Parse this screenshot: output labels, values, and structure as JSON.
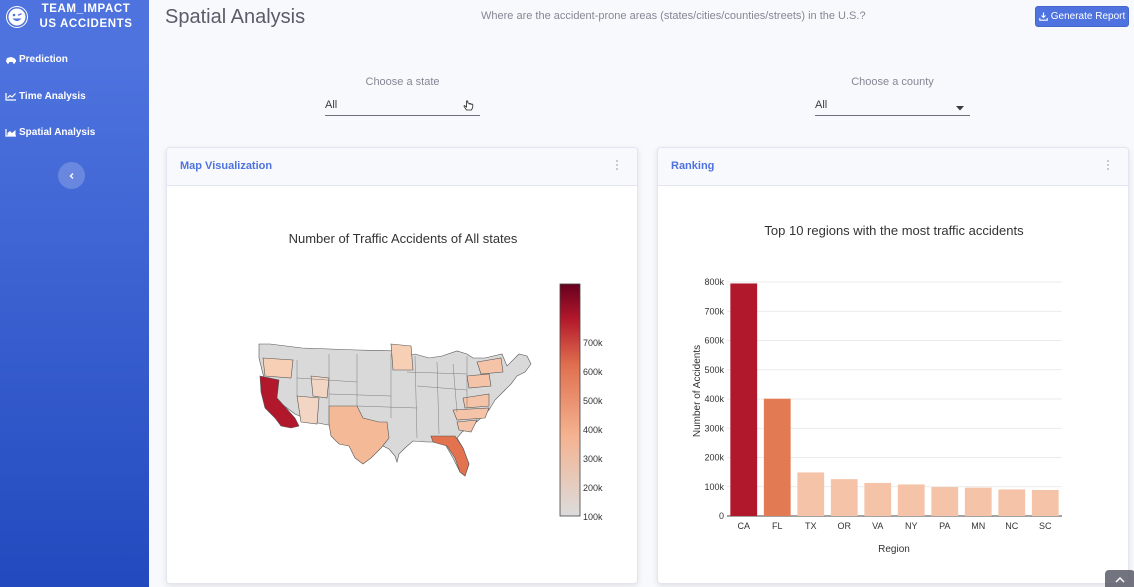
{
  "brand": {
    "line1": "TEAM_IMPACT",
    "line2": "US ACCIDENTS"
  },
  "sidebar": {
    "items": [
      {
        "label": "Prediction",
        "icon": "car-crash-icon"
      },
      {
        "label": "Time Analysis",
        "icon": "line-chart-icon"
      },
      {
        "label": "Spatial Analysis",
        "icon": "area-chart-icon"
      }
    ],
    "toggle_icon": "chevron-left-icon"
  },
  "header": {
    "title": "Spatial Analysis",
    "question": "Where are the accident-prone areas (states/cities/counties/streets) in the U.S.?",
    "report_button": "Generate Report"
  },
  "filters": {
    "state": {
      "label": "Choose a state",
      "value": "All"
    },
    "county": {
      "label": "Choose a county",
      "value": "All"
    }
  },
  "map_card": {
    "title": "Map Visualization",
    "chart_title": "Number of Traffic Accidents of All states",
    "colorbar_ticks": [
      "700k",
      "600k",
      "500k",
      "400k",
      "300k",
      "200k",
      "100k"
    ],
    "colors": {
      "low": "#dcdcdc",
      "mid": "#f4a582",
      "high": "#d6604d",
      "max": "#67001f"
    }
  },
  "ranking_card": {
    "title": "Ranking"
  },
  "chart_data": [
    {
      "type": "choropleth",
      "title": "Number of Traffic Accidents of All states",
      "colorscale_range": [
        0,
        800000
      ],
      "highlighted_states": [
        {
          "state": "CA",
          "value": 795000
        },
        {
          "state": "FL",
          "value": 401000
        },
        {
          "state": "TX",
          "value": 149000
        }
      ]
    },
    {
      "type": "bar",
      "title": "Top 10 regions with the most traffic accidents",
      "xlabel": "Region",
      "ylabel": "Number of Accidents",
      "categories": [
        "CA",
        "FL",
        "TX",
        "OR",
        "VA",
        "NY",
        "PA",
        "MN",
        "NC",
        "SC"
      ],
      "values": [
        795000,
        401000,
        149000,
        126000,
        113000,
        108000,
        99000,
        97000,
        91000,
        89000
      ],
      "ylim": [
        0,
        800000
      ],
      "yticks": [
        "0",
        "100k",
        "200k",
        "300k",
        "400k",
        "500k",
        "600k",
        "700k",
        "800k"
      ],
      "colors": [
        "#b2182b",
        "#e27b53",
        "#f4c3a8",
        "#f4c3a8",
        "#f4c3a8",
        "#f4c3a8",
        "#f4c3a8",
        "#f4c3a8",
        "#f4c3a8",
        "#f4c3a8"
      ],
      "grid": true
    }
  ]
}
